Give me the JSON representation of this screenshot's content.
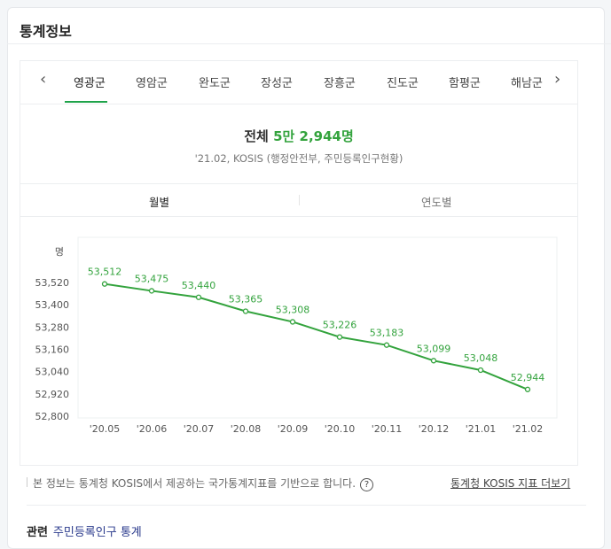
{
  "header": {
    "title": "통계정보"
  },
  "tabs": [
    "영광군",
    "영암군",
    "완도군",
    "장성군",
    "장흥군",
    "진도군",
    "함평군",
    "해남군"
  ],
  "active_tab": 0,
  "summary": {
    "label": "전체",
    "value": "5만 2,944명",
    "source": "'21.02, KOSIS (행정안전부, 주민등록인구현황)"
  },
  "segments": [
    "월별",
    "연도별"
  ],
  "footer": {
    "note": "본 정보는 통계청 KOSIS에서 제공하는 국가통계지표를 기반으로 합니다.",
    "help": "?",
    "more_link": "통계청 KOSIS 지표 더보기",
    "related_label": "관련",
    "related_link": "주민등록인구 통계"
  },
  "colors": {
    "accent": "#33a33d"
  },
  "chart_data": {
    "type": "line",
    "ylabel": "명",
    "categories": [
      "'20.05",
      "'20.06",
      "'20.07",
      "'20.08",
      "'20.09",
      "'20.10",
      "'20.11",
      "'20.12",
      "'21.01",
      "'21.02"
    ],
    "values": [
      53512,
      53475,
      53440,
      53365,
      53308,
      53226,
      53183,
      53099,
      53048,
      52944
    ],
    "value_labels": [
      "53,512",
      "53,475",
      "53,440",
      "53,365",
      "53,308",
      "53,226",
      "53,183",
      "53,099",
      "53,048",
      "52,944"
    ],
    "yticks": [
      53520,
      53400,
      53280,
      53160,
      53040,
      52920,
      52800
    ],
    "ytick_labels": [
      "53,520",
      "53,400",
      "53,280",
      "53,160",
      "53,040",
      "52,920",
      "52,800"
    ],
    "ylim": [
      52800,
      53520
    ]
  }
}
